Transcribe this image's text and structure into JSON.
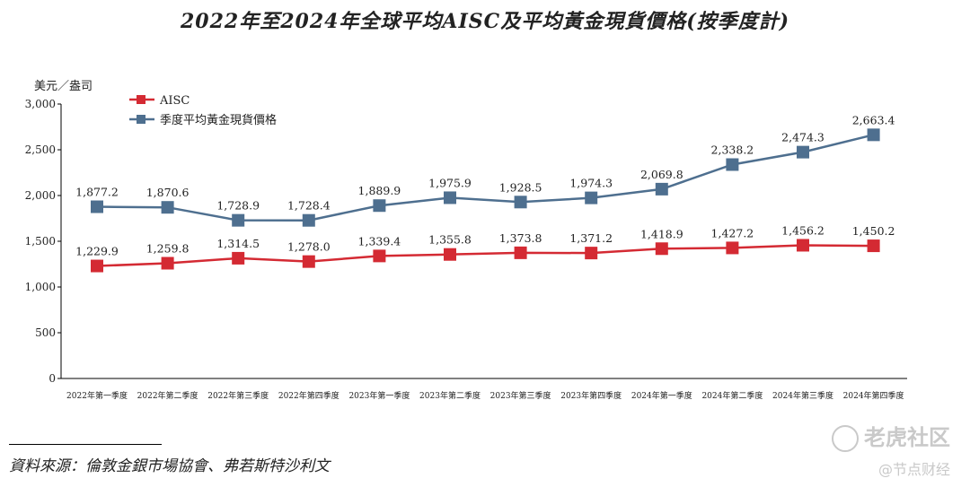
{
  "title": "2022年至2024年全球平均AISC及平均黃金現貨價格(按季度計)",
  "source": "資料來源：倫敦金銀市場協會、弗若斯特沙利文",
  "watermark": {
    "brand": "老虎社区",
    "sub": "@节点财经"
  },
  "chart_data": {
    "type": "line",
    "ylabel": "美元／盎司",
    "ylim": [
      0,
      3000
    ],
    "yticks": [
      "0",
      "500",
      "1,000",
      "1,500",
      "2,000",
      "2,500",
      "3,000"
    ],
    "categories": [
      "2022年第一季度",
      "2022年第二季度",
      "2022年第三季度",
      "2022年第四季度",
      "2023年第一季度",
      "2023年第二季度",
      "2023年第三季度",
      "2023年第四季度",
      "2024年第一季度",
      "2024年第二季度",
      "2024年第三季度",
      "2024年第四季度"
    ],
    "legend_position": "top-left",
    "series": [
      {
        "name": "AISC",
        "color": "#d42a33",
        "values": [
          1229.9,
          1259.8,
          1314.5,
          1278.0,
          1339.4,
          1355.8,
          1373.8,
          1371.2,
          1418.9,
          1427.2,
          1456.2,
          1450.2
        ],
        "labels": [
          "1,229.9",
          "1,259.8",
          "1,314.5",
          "1,278.0",
          "1,339.4",
          "1,355.8",
          "1,373.8",
          "1,371.2",
          "1,418.9",
          "1,427.2",
          "1,456.2",
          "1,450.2"
        ]
      },
      {
        "name": "季度平均黃金現貨價格",
        "color": "#4e6f8f",
        "values": [
          1877.2,
          1870.6,
          1728.9,
          1728.4,
          1889.9,
          1975.9,
          1928.5,
          1974.3,
          2069.8,
          2338.2,
          2474.3,
          2663.4
        ],
        "labels": [
          "1,877.2",
          "1,870.6",
          "1,728.9",
          "1,728.4",
          "1,889.9",
          "1,975.9",
          "1,928.5",
          "1,974.3",
          "2,069.8",
          "2,338.2",
          "2,474.3",
          "2,663.4"
        ]
      }
    ]
  }
}
